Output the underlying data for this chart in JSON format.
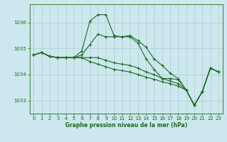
{
  "title": "Graphe pression niveau de la mer (hPa)",
  "bg_color": "#cce8ee",
  "grid_color": "#aacccc",
  "line_color": "#1a6b1a",
  "xlim": [
    -0.5,
    23.5
  ],
  "ylim": [
    1032.5,
    1036.7
  ],
  "yticks": [
    1033,
    1034,
    1035,
    1036
  ],
  "xticks": [
    0,
    1,
    2,
    3,
    4,
    5,
    6,
    7,
    8,
    9,
    10,
    11,
    12,
    13,
    14,
    15,
    16,
    17,
    18,
    19,
    20,
    21,
    22,
    23
  ],
  "series": [
    {
      "x": [
        0,
        1,
        2,
        3,
        4,
        5,
        6,
        7,
        8,
        9,
        10,
        11,
        12,
        13,
        14,
        15,
        16,
        17,
        18,
        19,
        20,
        21,
        22,
        23
      ],
      "y": [
        1034.75,
        1034.85,
        1034.7,
        1034.65,
        1034.65,
        1034.65,
        1034.9,
        1036.05,
        1036.3,
        1036.3,
        1035.5,
        1035.45,
        1035.45,
        1035.2,
        1034.6,
        1034.2,
        1033.85,
        1033.85,
        1033.8,
        1033.4,
        1032.82,
        1033.35,
        1034.25,
        1034.1
      ]
    },
    {
      "x": [
        0,
        1,
        2,
        3,
        4,
        5,
        6,
        7,
        8,
        9,
        10,
        11,
        12,
        13,
        14,
        15,
        16,
        17,
        18,
        19,
        20,
        21,
        22,
        23
      ],
      "y": [
        1034.75,
        1034.85,
        1034.7,
        1034.65,
        1034.65,
        1034.65,
        1034.75,
        1035.15,
        1035.55,
        1035.45,
        1035.45,
        1035.45,
        1035.5,
        1035.3,
        1035.05,
        1034.6,
        1034.35,
        1034.05,
        1033.85,
        1033.4,
        1032.82,
        1033.35,
        1034.25,
        1034.1
      ]
    },
    {
      "x": [
        0,
        1,
        2,
        3,
        4,
        5,
        6,
        7,
        8,
        9,
        10,
        11,
        12,
        13,
        14,
        15,
        16,
        17,
        18,
        19,
        20,
        21,
        22,
        23
      ],
      "y": [
        1034.75,
        1034.85,
        1034.7,
        1034.65,
        1034.65,
        1034.65,
        1034.65,
        1034.65,
        1034.65,
        1034.55,
        1034.45,
        1034.4,
        1034.35,
        1034.25,
        1034.1,
        1034.0,
        1033.85,
        1033.75,
        1033.65,
        1033.4,
        1032.82,
        1033.35,
        1034.25,
        1034.1
      ]
    },
    {
      "x": [
        0,
        1,
        2,
        3,
        4,
        5,
        6,
        7,
        8,
        9,
        10,
        11,
        12,
        13,
        14,
        15,
        16,
        17,
        18,
        19,
        20,
        21,
        22,
        23
      ],
      "y": [
        1034.75,
        1034.85,
        1034.7,
        1034.65,
        1034.65,
        1034.65,
        1034.65,
        1034.5,
        1034.4,
        1034.3,
        1034.2,
        1034.15,
        1034.1,
        1034.0,
        1033.9,
        1033.82,
        1033.72,
        1033.65,
        1033.55,
        1033.4,
        1032.82,
        1033.35,
        1034.25,
        1034.1
      ]
    }
  ]
}
